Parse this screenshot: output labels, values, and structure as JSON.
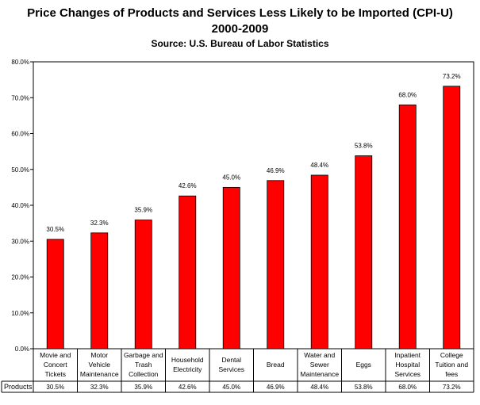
{
  "header": {
    "title_line1": "Price Changes of Products and Services Less Likely to be Imported (CPI-U)",
    "title_line2": "2000-2009",
    "source": "Source: U.S. Bureau of Labor Statistics"
  },
  "chart_data": {
    "type": "bar",
    "title": "Price Changes of Products and Services Less Likely to be Imported (CPI-U) 2000-2009",
    "subtitle": "Source: U.S. Bureau of Labor Statistics",
    "xlabel": "",
    "ylabel": "",
    "ylim": [
      0,
      80
    ],
    "yticks": [
      "0.0%",
      "10.0%",
      "20.0%",
      "30.0%",
      "40.0%",
      "50.0%",
      "60.0%",
      "70.0%",
      "80.0%"
    ],
    "categories": [
      [
        "Movie and",
        "Concert",
        "Tickets"
      ],
      [
        "Motor",
        "Vehicle",
        "Maintenance"
      ],
      [
        "Garbage and",
        "Trash",
        "Collection"
      ],
      [
        "Household",
        "Electricity"
      ],
      [
        "Dental",
        "Services"
      ],
      [
        "Bread"
      ],
      [
        "Water and",
        "Sewer",
        "Maintenance"
      ],
      [
        "Eggs"
      ],
      [
        "Inpatient",
        "Hospital",
        "Services"
      ],
      [
        "College",
        "Tuition and",
        "fees"
      ]
    ],
    "series": [
      {
        "name": "Products",
        "values": [
          30.5,
          32.3,
          35.9,
          42.6,
          45.0,
          46.9,
          48.4,
          53.8,
          68.0,
          73.2
        ],
        "labels": [
          "30.5%",
          "32.3%",
          "35.9%",
          "42.6%",
          "45.0%",
          "46.9%",
          "48.4%",
          "53.8%",
          "68.0%",
          "73.2%"
        ],
        "color": "#ff0000"
      }
    ],
    "grid": false,
    "legend": "data table row"
  }
}
